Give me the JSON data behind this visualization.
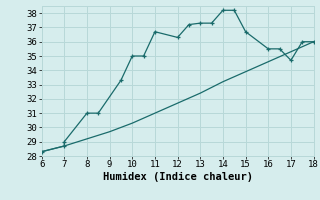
{
  "title": "",
  "xlabel": "Humidex (Indice chaleur)",
  "bg_color": "#d6eded",
  "grid_color": "#b8d8d8",
  "line_color": "#1a6b6b",
  "x_main": [
    6,
    7,
    7,
    8,
    8.5,
    9.5,
    10,
    10.5,
    11,
    12,
    12.5,
    13,
    13.5,
    14,
    14.5,
    15,
    16,
    16.5,
    17,
    17.5,
    18
  ],
  "y_main": [
    28.3,
    28.7,
    29.0,
    31.0,
    31.0,
    33.3,
    35.0,
    35.0,
    36.7,
    36.3,
    37.2,
    37.3,
    37.3,
    38.2,
    38.2,
    36.7,
    35.5,
    35.5,
    34.7,
    36.0,
    36.0
  ],
  "x_line2": [
    6,
    7,
    8,
    9,
    10,
    11,
    12,
    13,
    14,
    15,
    16,
    17,
    18
  ],
  "y_line2": [
    28.3,
    28.7,
    29.2,
    29.7,
    30.3,
    31.0,
    31.7,
    32.4,
    33.2,
    33.9,
    34.6,
    35.3,
    36.0
  ],
  "xlim": [
    6,
    18
  ],
  "ylim": [
    28,
    38.5
  ],
  "xticks": [
    6,
    7,
    8,
    9,
    10,
    11,
    12,
    13,
    14,
    15,
    16,
    17,
    18
  ],
  "yticks": [
    28,
    29,
    30,
    31,
    32,
    33,
    34,
    35,
    36,
    37,
    38
  ],
  "tick_fontsize": 6.5,
  "xlabel_fontsize": 7.5
}
